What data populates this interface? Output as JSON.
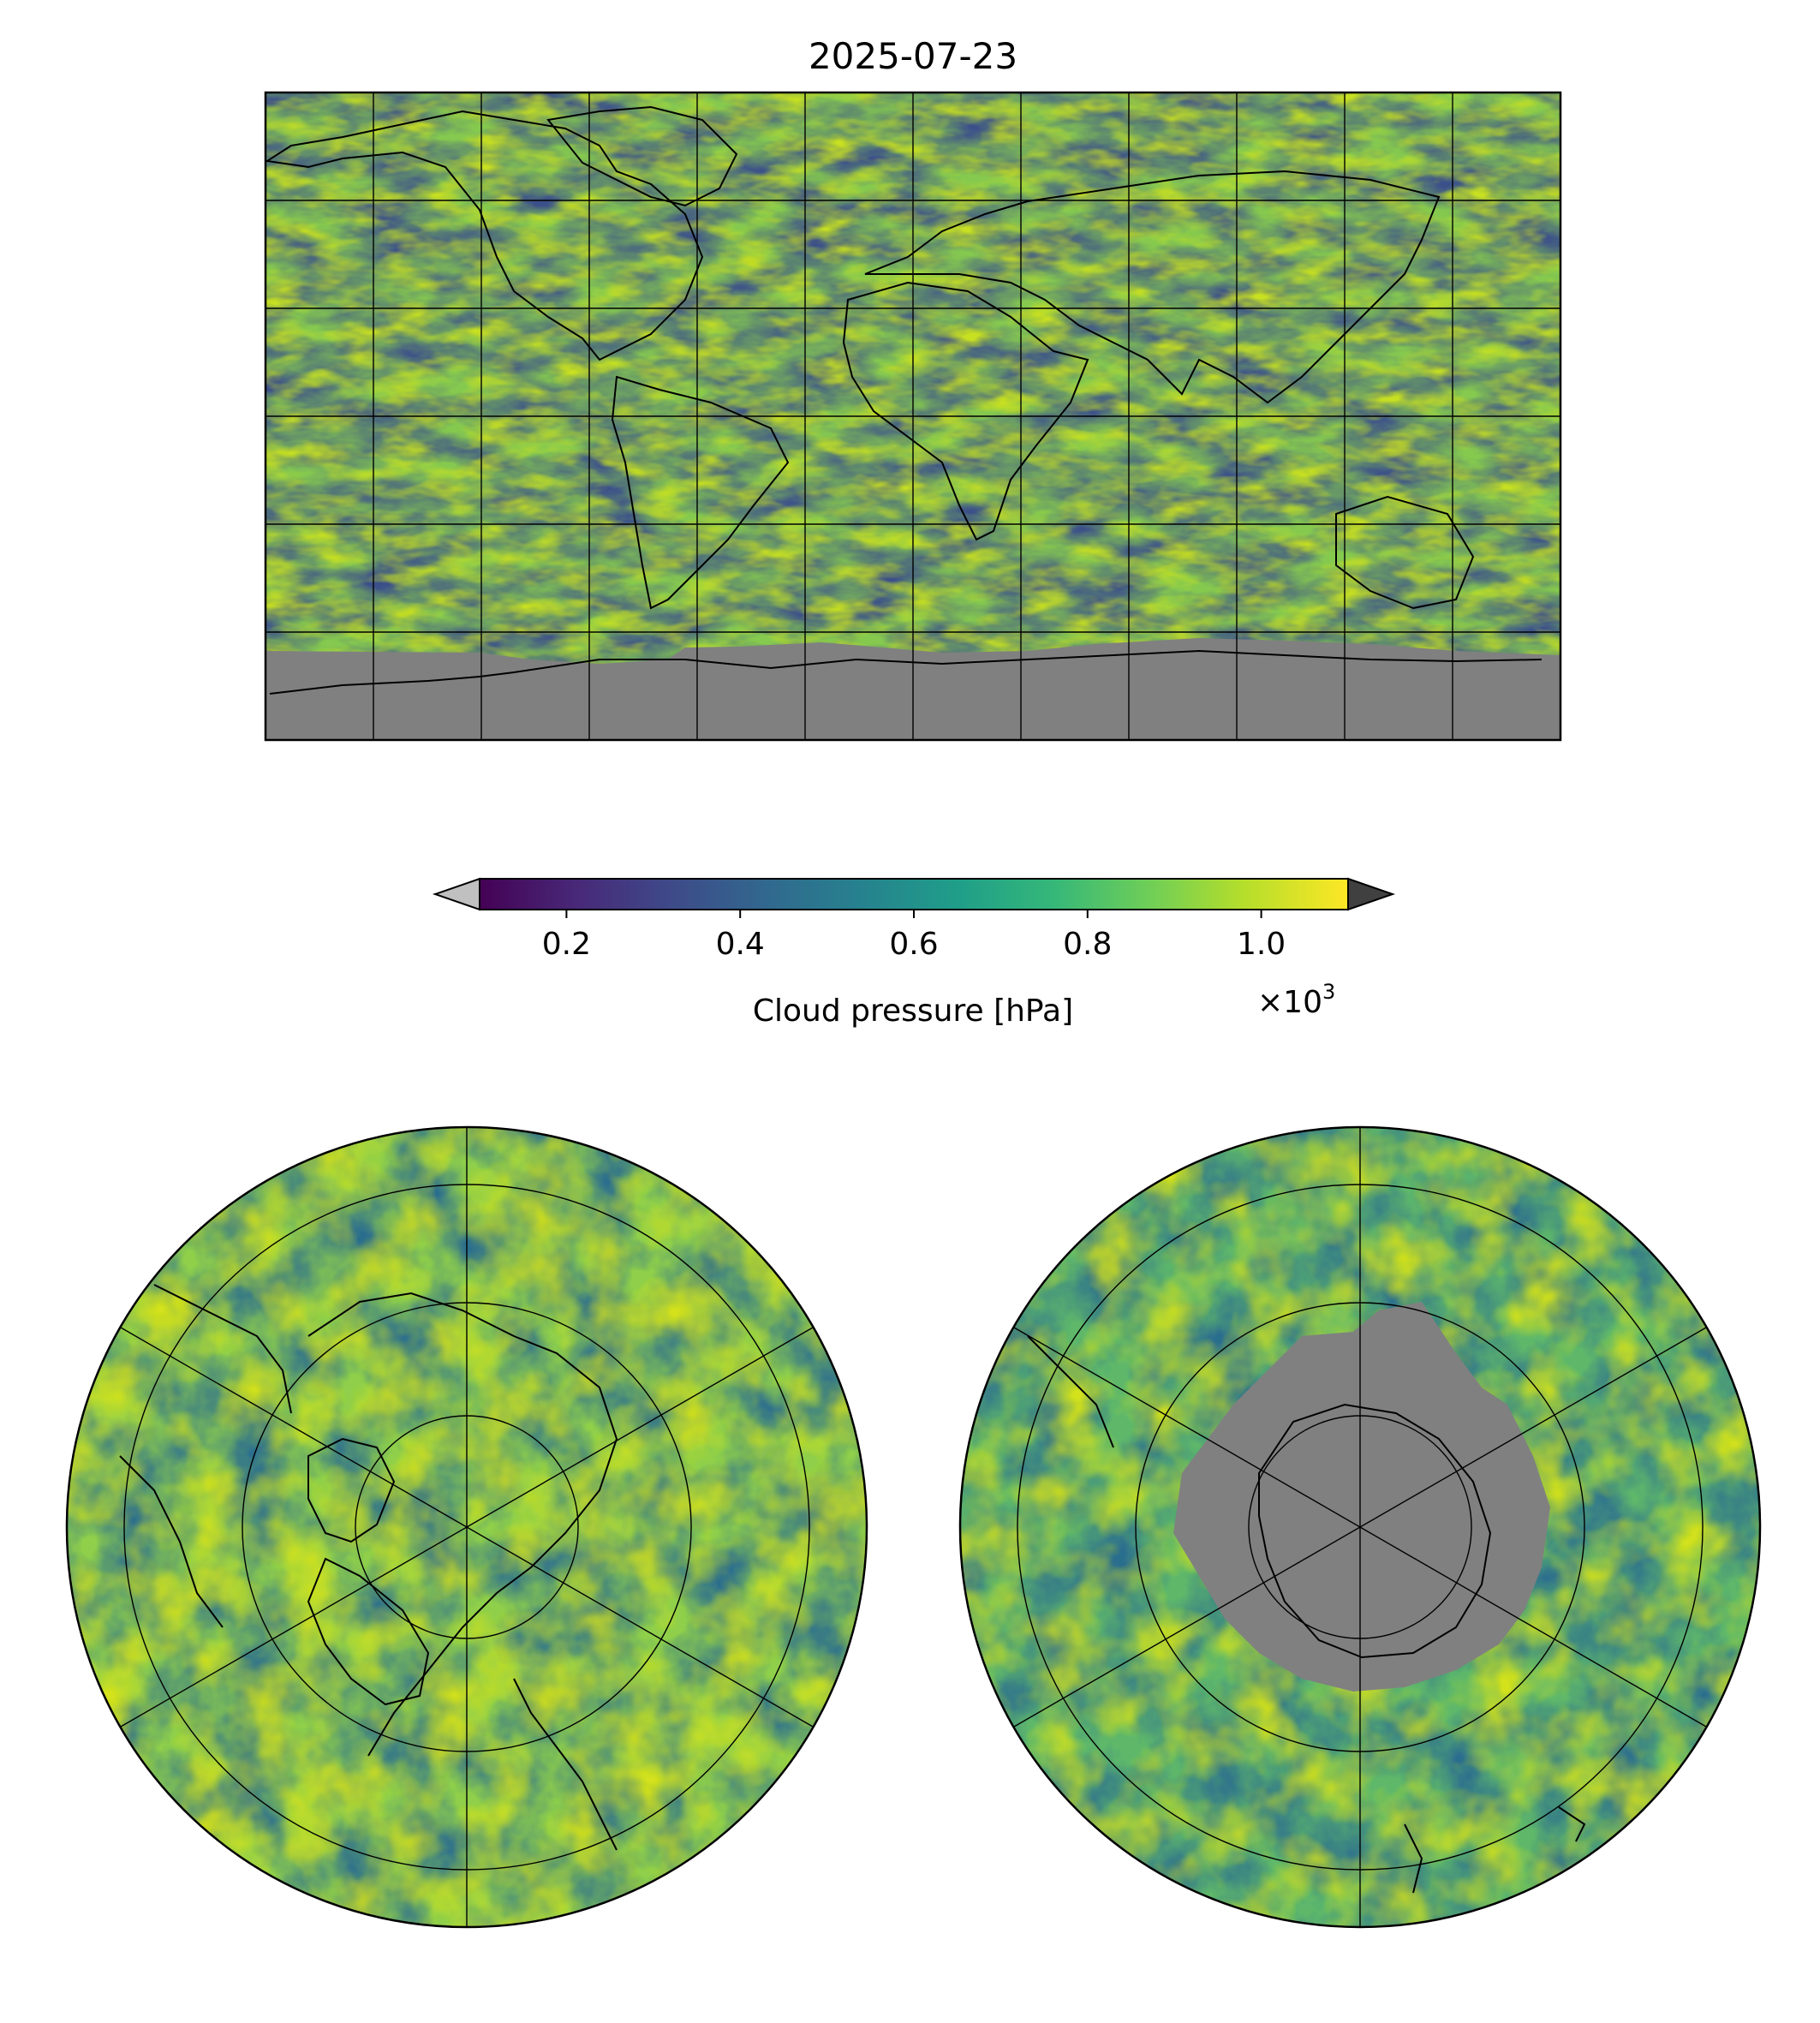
{
  "title": "2025-07-23",
  "colorbar": {
    "label": "Cloud pressure [hPa]",
    "offset_text": "×10",
    "offset_exponent": "3",
    "range": [
      0.1,
      1.1
    ],
    "ticks": [
      {
        "value": 0.2,
        "label": "0.2"
      },
      {
        "value": 0.4,
        "label": "0.4"
      },
      {
        "value": 0.6,
        "label": "0.6"
      },
      {
        "value": 0.8,
        "label": "0.8"
      },
      {
        "value": 1.0,
        "label": "1.0"
      }
    ],
    "colormap": "viridis",
    "stops": [
      "#440154",
      "#482878",
      "#3e4a89",
      "#31688e",
      "#26828e",
      "#1f9e89",
      "#35b779",
      "#6ece58",
      "#b5de2b",
      "#fde725"
    ],
    "under_color": "#c0c0c0",
    "over_color": "#404040",
    "extend": "both"
  },
  "maps": {
    "global": {
      "projection": "PlateCarree",
      "graticule_step_deg": 30,
      "no_data_color": "#808080"
    },
    "north_polar": {
      "projection": "NorthPolarStereo",
      "no_data_color": "#808080"
    },
    "south_polar": {
      "projection": "SouthPolarStereo",
      "no_data_color": "#808080"
    }
  }
}
